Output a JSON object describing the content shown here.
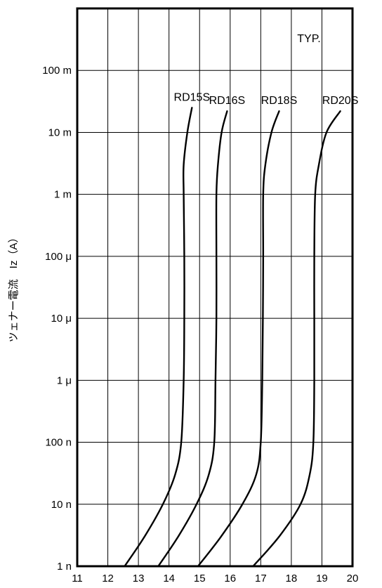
{
  "chart_data": {
    "type": "line",
    "title": "",
    "annotation": "TYP.",
    "xlabel": "",
    "ylabel": "ツェナー電流　Iz（A）",
    "x_scale": "linear",
    "y_scale": "log",
    "xlim": [
      11,
      20
    ],
    "ylim": [
      1e-09,
      1
    ],
    "grid": true,
    "x_ticks": [
      11,
      12,
      13,
      14,
      15,
      16,
      17,
      18,
      19,
      20
    ],
    "x_tick_labels": [
      "11",
      "12",
      "13",
      "14",
      "15",
      "16",
      "17",
      "18",
      "19",
      "20"
    ],
    "y_ticks": [
      1e-09,
      1e-08,
      1e-07,
      1e-06,
      1e-05,
      0.0001,
      0.001,
      0.01,
      0.1
    ],
    "y_tick_labels": [
      "1 n",
      "10 n",
      "100 n",
      "1 μ",
      "10 μ",
      "100 μ",
      "1 m",
      "10 m",
      "100 m"
    ],
    "series": [
      {
        "name": "RD15S",
        "points": [
          [
            12.55,
            1e-09
          ],
          [
            13.2,
            3e-09
          ],
          [
            13.8,
            1e-08
          ],
          [
            14.2,
            3e-08
          ],
          [
            14.4,
            1e-07
          ],
          [
            14.48,
            1e-06
          ],
          [
            14.5,
            1e-05
          ],
          [
            14.5,
            0.0001
          ],
          [
            14.48,
            0.001
          ],
          [
            14.48,
            0.003
          ],
          [
            14.6,
            0.01
          ],
          [
            14.75,
            0.025
          ]
        ]
      },
      {
        "name": "RD16S",
        "points": [
          [
            13.65,
            1e-09
          ],
          [
            14.3,
            3e-09
          ],
          [
            14.9,
            1e-08
          ],
          [
            15.3,
            3e-08
          ],
          [
            15.48,
            1e-07
          ],
          [
            15.52,
            1e-06
          ],
          [
            15.55,
            1e-05
          ],
          [
            15.55,
            0.0001
          ],
          [
            15.55,
            0.001
          ],
          [
            15.6,
            0.003
          ],
          [
            15.72,
            0.01
          ],
          [
            15.9,
            0.022
          ]
        ]
      },
      {
        "name": "RD18S",
        "points": [
          [
            14.95,
            1e-09
          ],
          [
            15.7,
            3e-09
          ],
          [
            16.4,
            1e-08
          ],
          [
            16.85,
            3e-08
          ],
          [
            17.0,
            1e-07
          ],
          [
            17.05,
            1e-06
          ],
          [
            17.07,
            1e-05
          ],
          [
            17.08,
            0.0001
          ],
          [
            17.08,
            0.001
          ],
          [
            17.15,
            0.003
          ],
          [
            17.35,
            0.01
          ],
          [
            17.6,
            0.022
          ]
        ]
      },
      {
        "name": "RD20S",
        "points": [
          [
            16.75,
            1e-09
          ],
          [
            17.6,
            3e-09
          ],
          [
            18.3,
            1e-08
          ],
          [
            18.6,
            3e-08
          ],
          [
            18.72,
            1e-07
          ],
          [
            18.75,
            1e-06
          ],
          [
            18.75,
            1e-05
          ],
          [
            18.75,
            0.0001
          ],
          [
            18.78,
            0.001
          ],
          [
            18.9,
            0.003
          ],
          [
            19.15,
            0.01
          ],
          [
            19.6,
            0.022
          ]
        ]
      }
    ]
  }
}
